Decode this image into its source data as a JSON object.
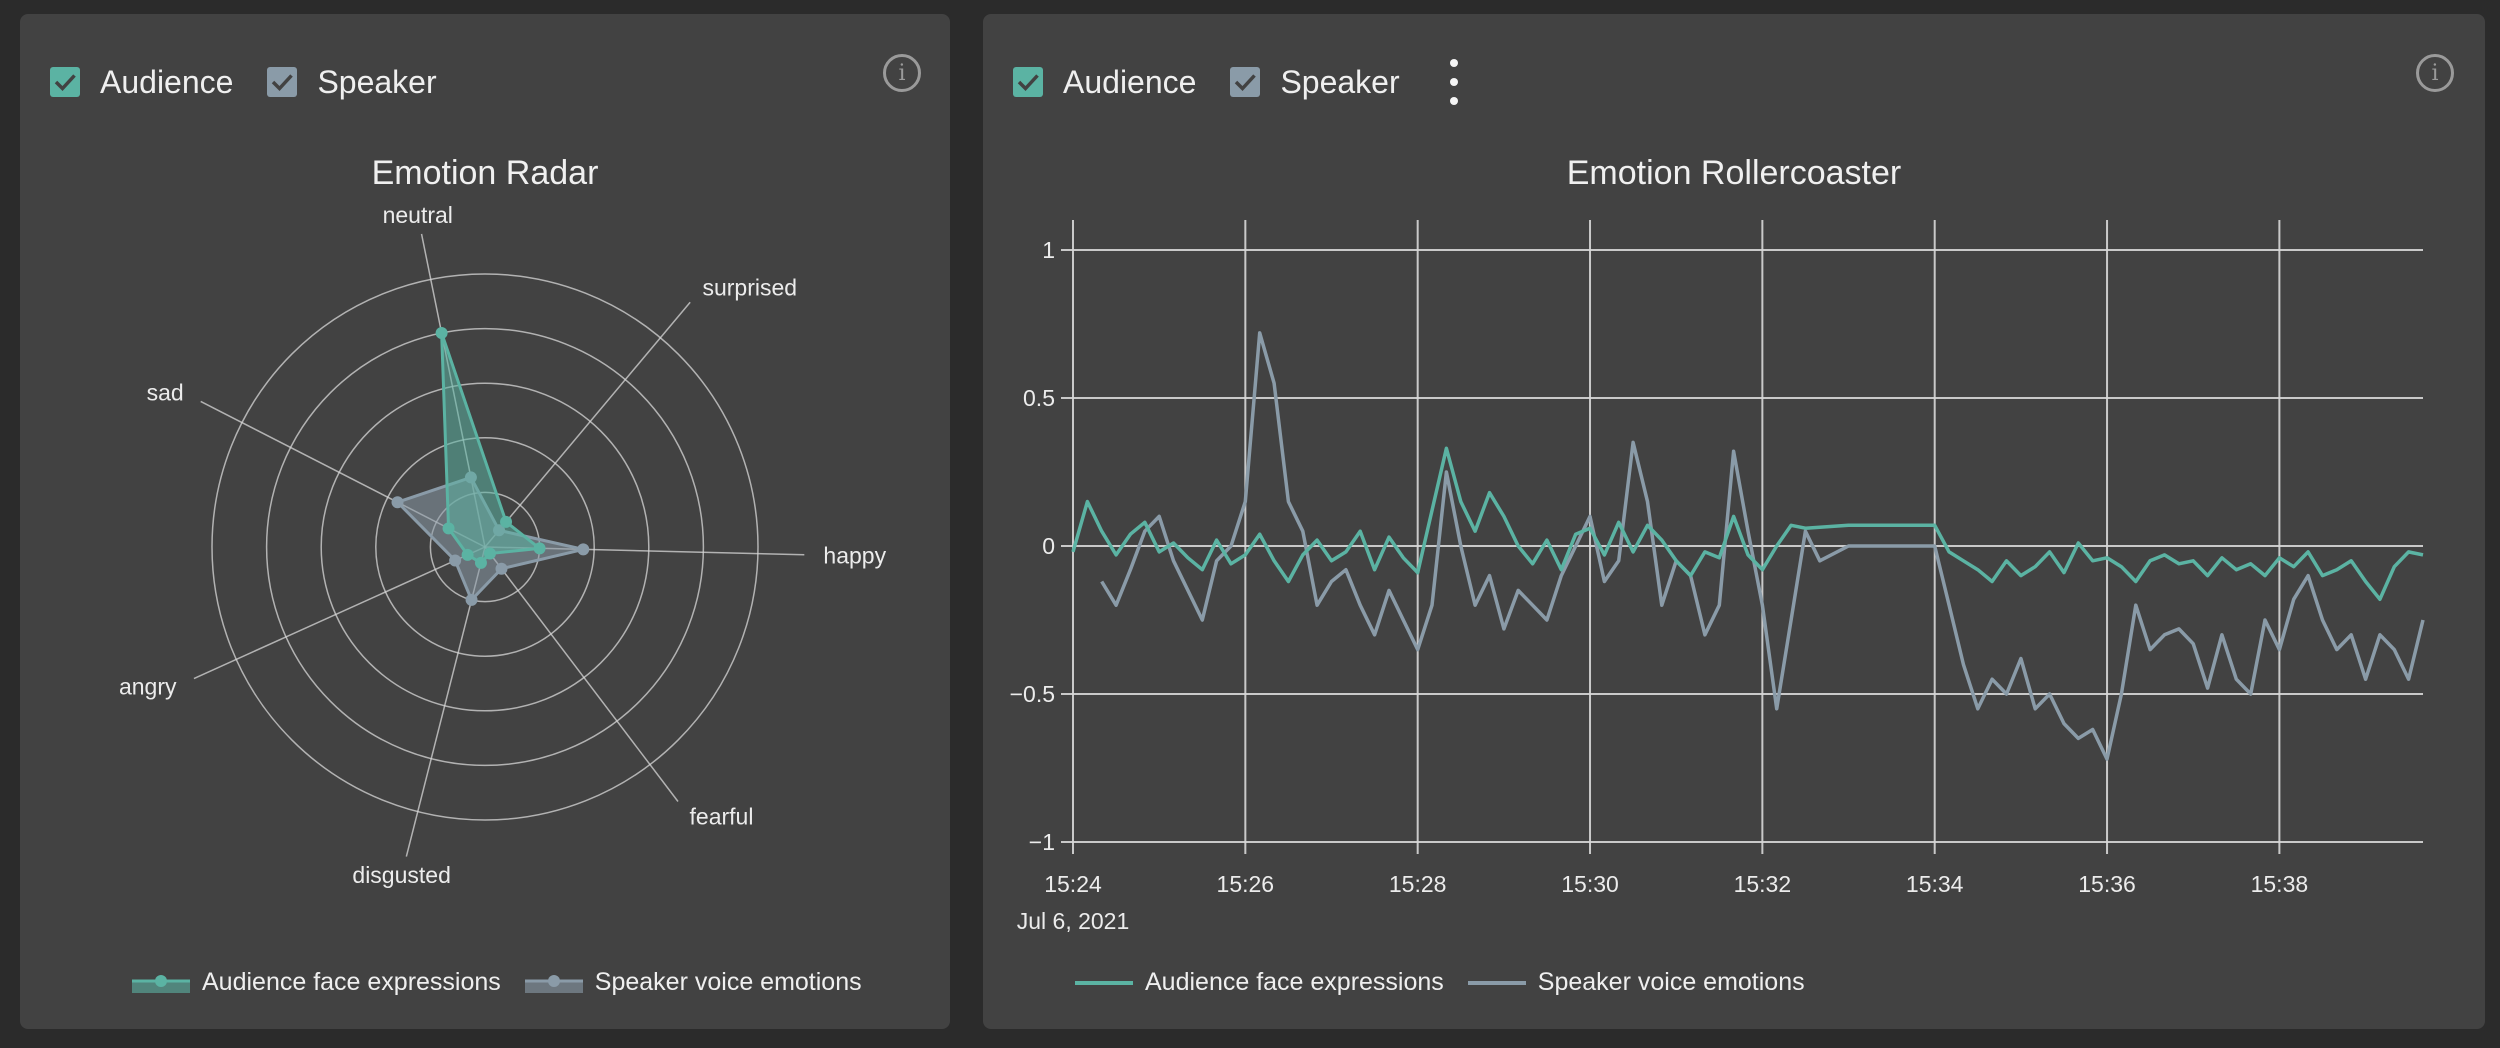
{
  "colors": {
    "audience": "#5bb3a3",
    "speaker": "#8a9ba8",
    "grid": "#d8d8d8",
    "panel": "#424242"
  },
  "left_panel": {
    "checkboxes": [
      {
        "label": "Audience",
        "checked": true,
        "color": "#5bb3a3"
      },
      {
        "label": "Speaker",
        "checked": true,
        "color": "#8a9ba8"
      }
    ],
    "info_icon": "info-icon"
  },
  "right_panel": {
    "checkboxes": [
      {
        "label": "Audience",
        "checked": true,
        "color": "#5bb3a3"
      },
      {
        "label": "Speaker",
        "checked": true,
        "color": "#8a9ba8"
      }
    ],
    "menu_icon": "more-vert-icon",
    "info_icon": "info-icon"
  },
  "chart_data": [
    {
      "type": "radar",
      "title": "Emotion Radar",
      "axes": [
        "neutral",
        "surprised",
        "happy",
        "fearful",
        "disgusted",
        "angry",
        "sad"
      ],
      "rmax": 1,
      "rings": 5,
      "legend_position": "bottom",
      "series": [
        {
          "name": "Audience face expressions",
          "color": "#5bb3a3",
          "values": [
            0.8,
            0.12,
            0.2,
            0.03,
            0.06,
            0.07,
            0.15
          ]
        },
        {
          "name": "Speaker voice emotions",
          "color": "#8a9ba8",
          "values": [
            0.26,
            0.08,
            0.36,
            0.1,
            0.2,
            0.12,
            0.36
          ]
        }
      ]
    },
    {
      "type": "line",
      "title": "Emotion Rollercoaster",
      "xlabel": "",
      "ylabel": "",
      "ylim": [
        -1,
        1
      ],
      "yticks": [
        1,
        0.5,
        0,
        -0.5,
        -1
      ],
      "ytick_labels": [
        "1",
        "0.5",
        "0",
        "−0.5",
        "−1"
      ],
      "xlim": [
        "15:24",
        "15:39:40"
      ],
      "xticks": [
        "15:24",
        "15:26",
        "15:28",
        "15:30",
        "15:32",
        "15:34",
        "15:36",
        "15:38"
      ],
      "date_label": "Jul 6, 2021",
      "grid": true,
      "legend_position": "bottom",
      "series": [
        {
          "name": "Audience face expressions",
          "color": "#5bb3a3",
          "x": [
            "15:24:00",
            "15:24:10",
            "15:24:20",
            "15:24:30",
            "15:24:40",
            "15:24:50",
            "15:25:00",
            "15:25:10",
            "15:25:20",
            "15:25:30",
            "15:25:40",
            "15:25:50",
            "15:26:00",
            "15:26:10",
            "15:26:20",
            "15:26:30",
            "15:26:40",
            "15:26:50",
            "15:27:00",
            "15:27:10",
            "15:27:20",
            "15:27:30",
            "15:27:40",
            "15:27:50",
            "15:28:00",
            "15:28:10",
            "15:28:20",
            "15:28:30",
            "15:28:40",
            "15:28:50",
            "15:29:00",
            "15:29:10",
            "15:29:20",
            "15:29:30",
            "15:29:40",
            "15:29:50",
            "15:30:00",
            "15:30:10",
            "15:30:20",
            "15:30:30",
            "15:30:40",
            "15:30:50",
            "15:31:00",
            "15:31:10",
            "15:31:20",
            "15:31:30",
            "15:31:40",
            "15:31:50",
            "15:32:00",
            "15:32:10",
            "15:32:20",
            "15:32:30",
            "15:33:00",
            "15:33:30",
            "15:34:00",
            "15:34:10",
            "15:34:20",
            "15:34:30",
            "15:34:40",
            "15:34:50",
            "15:35:00",
            "15:35:10",
            "15:35:20",
            "15:35:30",
            "15:35:40",
            "15:35:50",
            "15:36:00",
            "15:36:10",
            "15:36:20",
            "15:36:30",
            "15:36:40",
            "15:36:50",
            "15:37:00",
            "15:37:10",
            "15:37:20",
            "15:37:30",
            "15:37:40",
            "15:37:50",
            "15:38:00",
            "15:38:10",
            "15:38:20",
            "15:38:30",
            "15:38:40",
            "15:38:50",
            "15:39:00",
            "15:39:10",
            "15:39:20",
            "15:39:30",
            "15:39:40"
          ],
          "y": [
            -0.02,
            0.15,
            0.05,
            -0.03,
            0.04,
            0.08,
            -0.02,
            0.01,
            -0.04,
            -0.08,
            0.02,
            -0.06,
            -0.03,
            0.04,
            -0.05,
            -0.12,
            -0.03,
            0.02,
            -0.05,
            -0.02,
            0.05,
            -0.08,
            0.03,
            -0.04,
            -0.09,
            0.12,
            0.33,
            0.15,
            0.05,
            0.18,
            0.1,
            0.0,
            -0.06,
            0.02,
            -0.08,
            0.04,
            0.06,
            -0.03,
            0.08,
            -0.02,
            0.07,
            0.02,
            -0.05,
            -0.1,
            -0.02,
            -0.04,
            0.1,
            -0.03,
            -0.08,
            0.0,
            0.07,
            0.06,
            0.07,
            0.07,
            0.07,
            -0.02,
            -0.05,
            -0.08,
            -0.12,
            -0.05,
            -0.1,
            -0.07,
            -0.02,
            -0.09,
            0.01,
            -0.05,
            -0.04,
            -0.07,
            -0.12,
            -0.05,
            -0.03,
            -0.06,
            -0.05,
            -0.1,
            -0.04,
            -0.08,
            -0.06,
            -0.1,
            -0.04,
            -0.07,
            -0.02,
            -0.1,
            -0.08,
            -0.05,
            -0.12,
            -0.18,
            -0.07,
            -0.02,
            -0.03
          ]
        },
        {
          "name": "Speaker voice emotions",
          "color": "#8a9ba8",
          "x": [
            "15:24:20",
            "15:24:30",
            "15:24:40",
            "15:24:50",
            "15:25:00",
            "15:25:10",
            "15:25:20",
            "15:25:30",
            "15:25:40",
            "15:25:50",
            "15:26:00",
            "15:26:10",
            "15:26:20",
            "15:26:30",
            "15:26:40",
            "15:26:50",
            "15:27:00",
            "15:27:10",
            "15:27:20",
            "15:27:30",
            "15:27:40",
            "15:27:50",
            "15:28:00",
            "15:28:10",
            "15:28:20",
            "15:28:30",
            "15:28:40",
            "15:28:50",
            "15:29:00",
            "15:29:10",
            "15:29:20",
            "15:29:30",
            "15:29:40",
            "15:29:50",
            "15:30:00",
            "15:30:10",
            "15:30:20",
            "15:30:30",
            "15:30:40",
            "15:30:50",
            "15:31:00",
            "15:31:10",
            "15:31:20",
            "15:31:30",
            "15:31:40",
            "15:31:50",
            "15:32:00",
            "15:32:10",
            "15:32:20",
            "15:32:30",
            "15:32:40",
            "15:33:00",
            "15:33:30",
            "15:34:00",
            "15:34:10",
            "15:34:20",
            "15:34:30",
            "15:34:40",
            "15:34:50",
            "15:35:00",
            "15:35:10",
            "15:35:20",
            "15:35:30",
            "15:35:40",
            "15:35:50",
            "15:36:00",
            "15:36:10",
            "15:36:20",
            "15:36:30",
            "15:36:40",
            "15:36:50",
            "15:37:00",
            "15:37:10",
            "15:37:20",
            "15:37:30",
            "15:37:40",
            "15:37:50",
            "15:38:00",
            "15:38:10",
            "15:38:20",
            "15:38:30",
            "15:38:40",
            "15:38:50",
            "15:39:00",
            "15:39:10",
            "15:39:20",
            "15:39:30",
            "15:39:40"
          ],
          "y": [
            -0.12,
            -0.2,
            -0.08,
            0.05,
            0.1,
            -0.05,
            -0.15,
            -0.25,
            -0.05,
            0.0,
            0.15,
            0.72,
            0.55,
            0.15,
            0.05,
            -0.2,
            -0.12,
            -0.08,
            -0.2,
            -0.3,
            -0.15,
            -0.25,
            -0.35,
            -0.2,
            0.25,
            0.0,
            -0.2,
            -0.1,
            -0.28,
            -0.15,
            -0.2,
            -0.25,
            -0.1,
            0.0,
            0.1,
            -0.12,
            -0.05,
            0.35,
            0.15,
            -0.2,
            -0.05,
            -0.1,
            -0.3,
            -0.2,
            0.32,
            0.05,
            -0.2,
            -0.55,
            -0.25,
            0.05,
            -0.05,
            0.0,
            0.0,
            0.0,
            -0.2,
            -0.4,
            -0.55,
            -0.45,
            -0.5,
            -0.38,
            -0.55,
            -0.5,
            -0.6,
            -0.65,
            -0.62,
            -0.72,
            -0.5,
            -0.2,
            -0.35,
            -0.3,
            -0.28,
            -0.33,
            -0.48,
            -0.3,
            -0.45,
            -0.5,
            -0.25,
            -0.35,
            -0.18,
            -0.1,
            -0.25,
            -0.35,
            -0.3,
            -0.45,
            -0.3,
            -0.35,
            -0.45,
            -0.25
          ]
        }
      ]
    }
  ]
}
